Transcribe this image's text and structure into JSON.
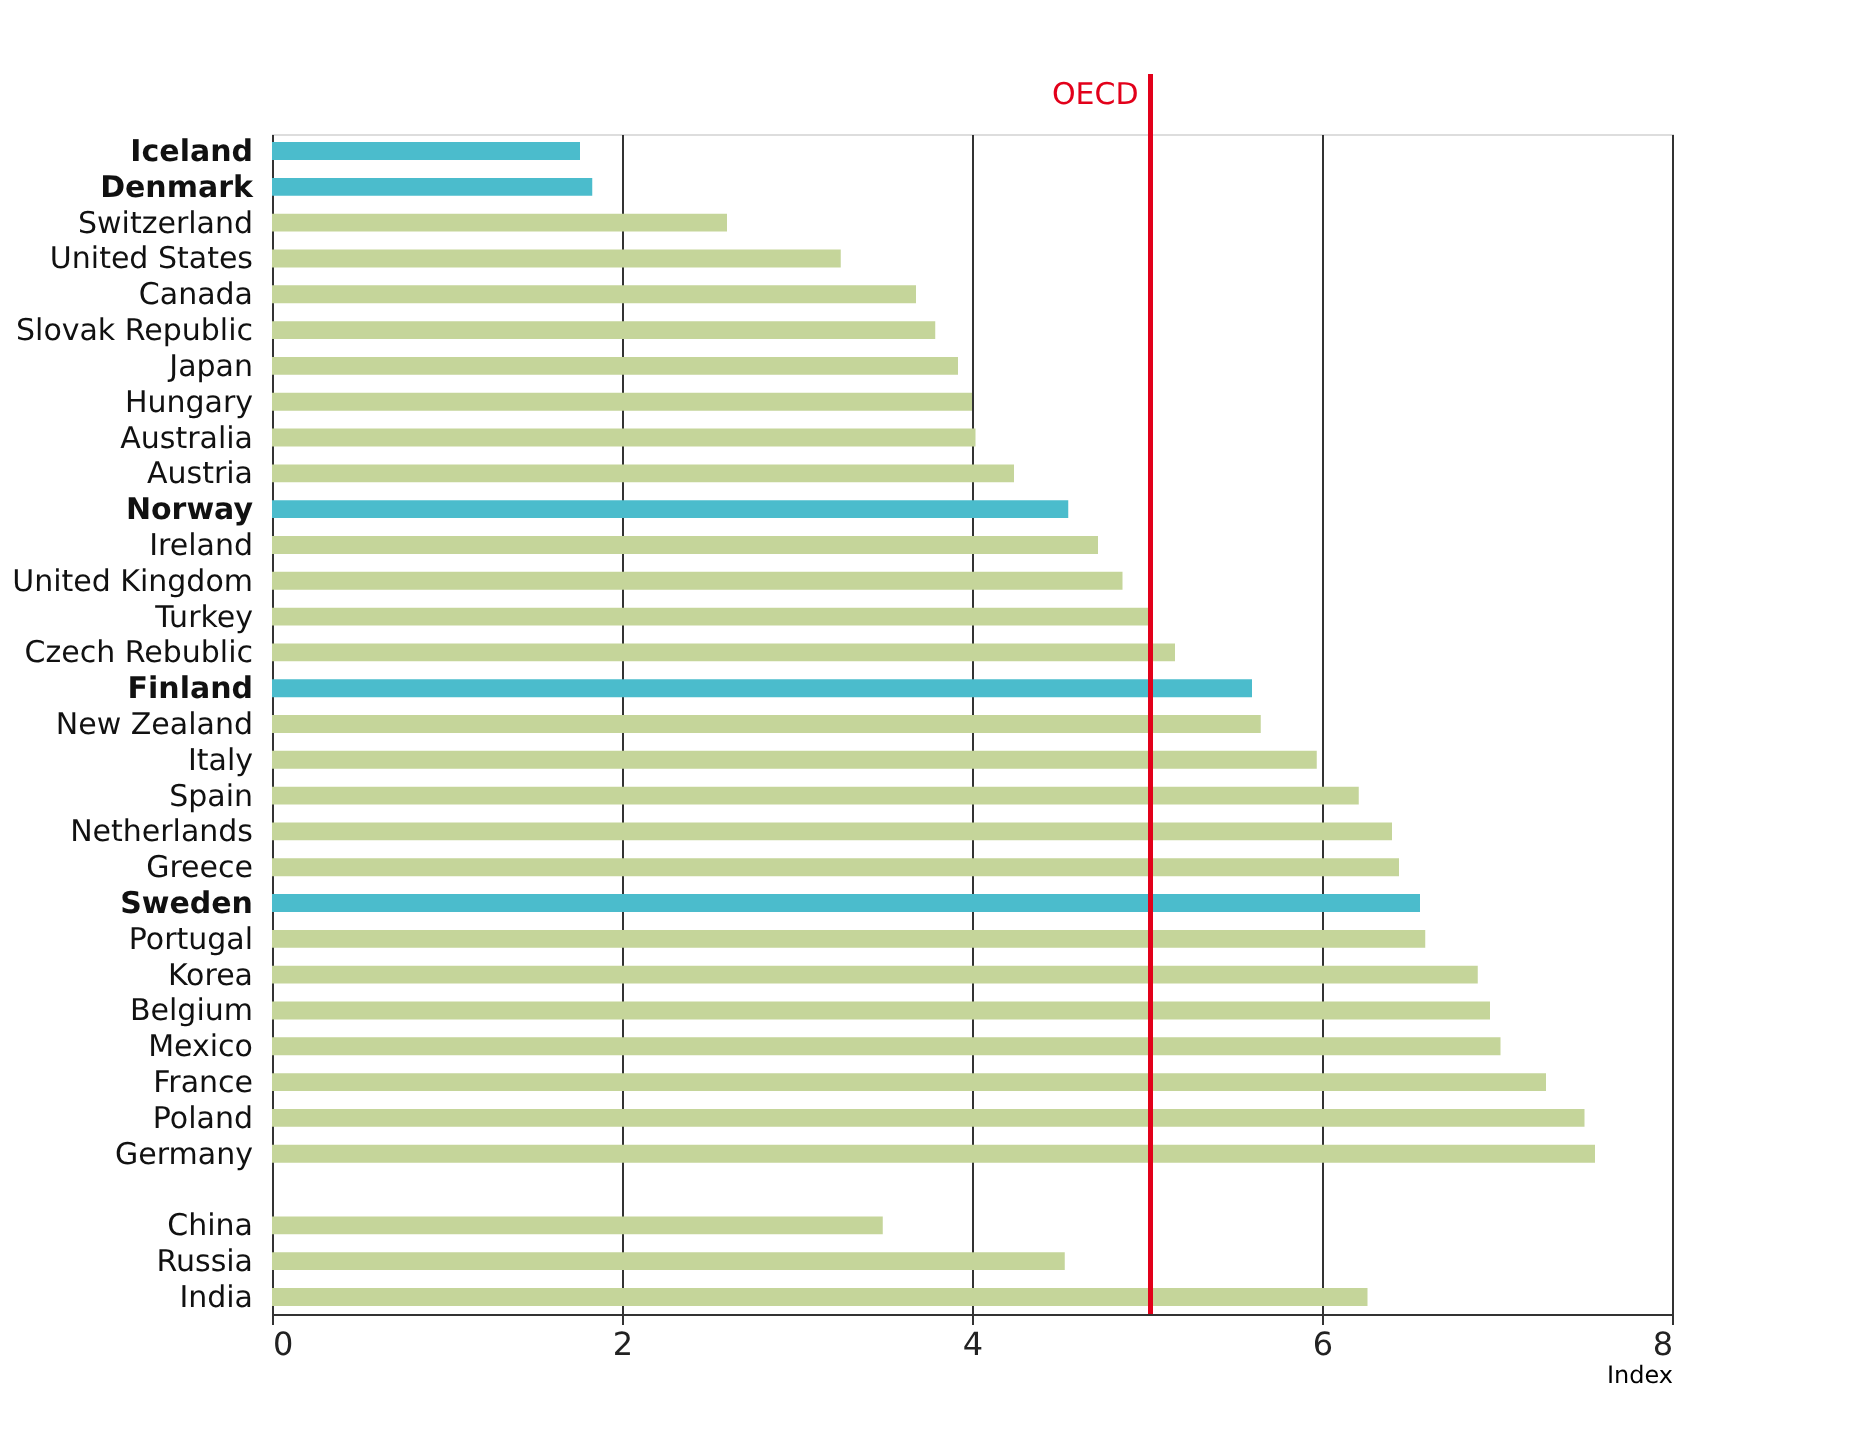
{
  "chart_data": {
    "type": "bar",
    "orientation": "horizontal",
    "xlabel": "Index",
    "categories": [
      "Iceland",
      "Denmark",
      "Switzerland",
      "United States",
      "Canada",
      "Slovak Republic",
      "Japan",
      "Hungary",
      "Australia",
      "Austria",
      "Norway",
      "Ireland",
      "United Kingdom",
      "Turkey",
      "Czech Rebublic",
      "Finland",
      "New Zealand",
      "Italy",
      "Spain",
      "Netherlands",
      "Greece",
      "Sweden",
      "Portugal",
      "Korea",
      "Belgium",
      "Mexico",
      "France",
      "Poland",
      "Germany",
      null,
      "China",
      "Russia",
      "India"
    ],
    "values": [
      1.76,
      1.83,
      2.6,
      3.25,
      3.68,
      3.79,
      3.92,
      4.0,
      4.02,
      4.24,
      4.55,
      4.72,
      4.86,
      5.02,
      5.16,
      5.6,
      5.65,
      5.97,
      6.21,
      6.4,
      6.44,
      6.56,
      6.59,
      6.89,
      6.96,
      7.02,
      7.28,
      7.5,
      7.56,
      null,
      3.49,
      4.53,
      6.26
    ],
    "colors": [
      "#4bbccc",
      "#4bbccc",
      "#c5d59a",
      "#c5d59a",
      "#c5d59a",
      "#c5d59a",
      "#c5d59a",
      "#c5d59a",
      "#c5d59a",
      "#c5d59a",
      "#4bbccc",
      "#c5d59a",
      "#c5d59a",
      "#c5d59a",
      "#c5d59a",
      "#4bbccc",
      "#c5d59a",
      "#c5d59a",
      "#c5d59a",
      "#c5d59a",
      "#c5d59a",
      "#4bbccc",
      "#c5d59a",
      "#c5d59a",
      "#c5d59a",
      "#c5d59a",
      "#c5d59a",
      "#c5d59a",
      "#c5d59a",
      "#c5d59a",
      "#c5d59a",
      "#c5d59a",
      "#c5d59a"
    ],
    "xlim": [
      0,
      8
    ],
    "xticks": [
      0,
      2,
      4,
      6,
      8
    ],
    "grid": "x",
    "ref_lines": [
      {
        "axis": "x",
        "value": 5.02,
        "label": "OECD",
        "color": "#e2001a"
      }
    ]
  }
}
